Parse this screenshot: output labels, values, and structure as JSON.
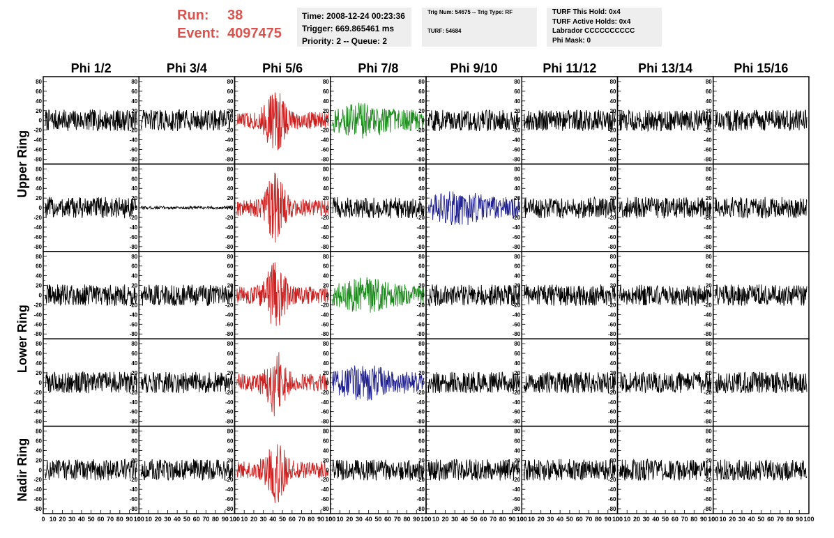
{
  "header": {
    "run_label": "Run:",
    "run_value": "38",
    "event_label": "Event:",
    "event_value": "4097475",
    "info_color": "#d9534f",
    "box1": [
      "Time: 2008-12-24 00:23:36",
      "Trigger: 669.865461 ms",
      "Priority: 2 -- Queue: 2"
    ],
    "box2": [
      "Trig Num: 54675 -- Trig Type: RF",
      "TURF: 54684"
    ],
    "box3": [
      "TURF This Hold: 0x4",
      "TURF Active Holds: 0x4",
      "Labrador CCCCCCCCCC",
      "Phi Mask: 0"
    ]
  },
  "chart_data": {
    "type": "line",
    "columns": [
      "Phi 1/2",
      "Phi 3/4",
      "Phi 5/6",
      "Phi 7/8",
      "Phi 9/10",
      "Phi 11/12",
      "Phi 13/14",
      "Phi 15/16"
    ],
    "ring_labels": [
      "Upper Ring",
      "Lower Ring",
      "Nadir Ring"
    ],
    "rows": 5,
    "xlim": [
      0,
      100
    ],
    "ylim": [
      -90,
      90
    ],
    "yticks": [
      "80",
      "60",
      "40",
      "20",
      "0",
      "-20",
      "-40",
      "-60",
      "-80"
    ],
    "xticks": [
      "0",
      "10",
      "20",
      "30",
      "40",
      "50",
      "60",
      "70",
      "80",
      "90",
      "100"
    ],
    "colors": {
      "black": "#000000",
      "red": "#cc2222",
      "green": "#1a8a1a",
      "blue": "#202090"
    },
    "highlighted": [
      {
        "row": 0,
        "col": 2,
        "color": "red"
      },
      {
        "row": 0,
        "col": 3,
        "color": "green"
      },
      {
        "row": 1,
        "col": 2,
        "color": "red"
      },
      {
        "row": 1,
        "col": 4,
        "color": "blue"
      },
      {
        "row": 2,
        "col": 2,
        "color": "red"
      },
      {
        "row": 2,
        "col": 3,
        "color": "green"
      },
      {
        "row": 3,
        "col": 2,
        "color": "red"
      },
      {
        "row": 3,
        "col": 3,
        "color": "blue"
      },
      {
        "row": 4,
        "col": 2,
        "color": "red"
      }
    ],
    "quiet_panels": [
      {
        "row": 1,
        "col": 1
      }
    ]
  }
}
